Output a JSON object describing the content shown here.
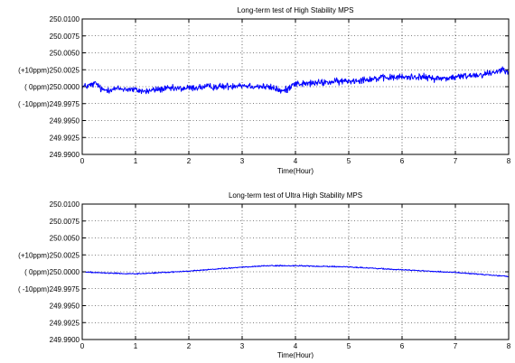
{
  "chart_data": [
    {
      "type": "line",
      "title": "Long-term test of High Stability MPS",
      "xlabel": "Time(Hour)",
      "ylabel": "",
      "xlim": [
        0,
        8
      ],
      "ylim": [
        249.99,
        250.01
      ],
      "x_ticks": [
        "0",
        "1",
        "2",
        "3",
        "4",
        "5",
        "6",
        "7",
        "8"
      ],
      "y_ticks": [
        {
          "value": 250.01,
          "label": "250.0100"
        },
        {
          "value": 250.0075,
          "label": "250.0075"
        },
        {
          "value": 250.005,
          "label": "250.0050"
        },
        {
          "value": 250.0025,
          "label": "(+10ppm)250.0025"
        },
        {
          "value": 250.0,
          "label": "(    0ppm)250.0000"
        },
        {
          "value": 249.9975,
          "label": "( -10ppm)249.9975"
        },
        {
          "value": 249.995,
          "label": "249.9950"
        },
        {
          "value": 249.9925,
          "label": "249.9925"
        },
        {
          "value": 249.99,
          "label": "249.9900"
        }
      ],
      "grid": true,
      "color": "#0000ff",
      "noise_amplitude": 0.0005,
      "series": [
        {
          "x": [
            0,
            0.1,
            0.2,
            0.25,
            0.3,
            0.35,
            0.4,
            0.5,
            0.7,
            0.9,
            1.0,
            1.2,
            1.4,
            1.6,
            1.8,
            2.0,
            2.2,
            2.4,
            2.6,
            2.8,
            2.95,
            3.0,
            3.2,
            3.4,
            3.6,
            3.75,
            3.85,
            3.95,
            4.1,
            4.3,
            4.5,
            4.7,
            4.9,
            5.1,
            5.3,
            5.5,
            5.7,
            5.9,
            6.1,
            6.3,
            6.5,
            6.7,
            6.9,
            7.1,
            7.3,
            7.5,
            7.7,
            7.9,
            8.0
          ],
          "y": [
            250.0,
            250.0001,
            250.0003,
            250.0005,
            250.0002,
            249.9996,
            249.9995,
            249.9996,
            249.9997,
            249.9996,
            249.9995,
            249.9993,
            249.9996,
            249.9997,
            249.9997,
            249.9998,
            249.9999,
            250.0,
            250.0,
            250.0001,
            250.0003,
            250.0002,
            250.0001,
            250.0,
            249.9998,
            249.9993,
            249.9996,
            250.0005,
            250.0004,
            250.0005,
            250.0006,
            250.0007,
            250.0008,
            250.0009,
            250.0011,
            250.0012,
            250.0013,
            250.0014,
            250.0014,
            250.0015,
            250.0013,
            250.0012,
            250.0013,
            250.0015,
            250.0017,
            250.0018,
            250.0021,
            250.0026,
            250.0024
          ]
        }
      ]
    },
    {
      "type": "line",
      "title": "Long-term test of Ultra High Stability MPS",
      "xlabel": "Time(Hour)",
      "ylabel": "",
      "xlim": [
        0,
        8
      ],
      "ylim": [
        249.99,
        250.01
      ],
      "x_ticks": [
        "0",
        "1",
        "2",
        "3",
        "4",
        "5",
        "6",
        "7",
        "8"
      ],
      "y_ticks": [
        {
          "value": 250.01,
          "label": "250.0100"
        },
        {
          "value": 250.0075,
          "label": "250.0075"
        },
        {
          "value": 250.005,
          "label": "250.0050"
        },
        {
          "value": 250.0025,
          "label": "(+10ppm)250.0025"
        },
        {
          "value": 250.0,
          "label": "(    0ppm)250.0000"
        },
        {
          "value": 249.9975,
          "label": "( -10ppm)249.9975"
        },
        {
          "value": 249.995,
          "label": "249.9950"
        },
        {
          "value": 249.9925,
          "label": "249.9925"
        },
        {
          "value": 249.99,
          "label": "249.9900"
        }
      ],
      "grid": true,
      "color": "#0000ff",
      "noise_amplitude": 8e-05,
      "series": [
        {
          "x": [
            0,
            0.5,
            1.0,
            1.5,
            2.0,
            2.5,
            3.0,
            3.5,
            4.0,
            4.5,
            5.0,
            5.5,
            6.0,
            6.5,
            7.0,
            7.5,
            8.0
          ],
          "y": [
            250.0,
            249.9998,
            249.9997,
            249.9999,
            250.0001,
            250.0004,
            250.0007,
            250.0009,
            250.0009,
            250.0008,
            250.0007,
            250.0005,
            250.0003,
            250.0001,
            249.9999,
            249.9996,
            249.9993
          ]
        }
      ]
    }
  ]
}
